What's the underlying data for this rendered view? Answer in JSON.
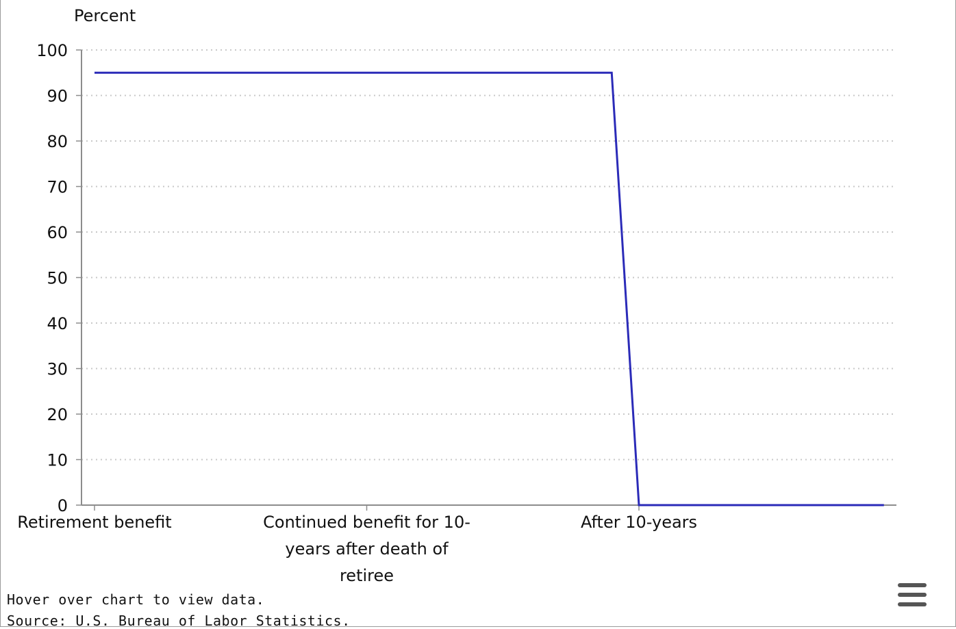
{
  "chart_data": {
    "type": "line",
    "title": "",
    "xlabel": "",
    "ylabel": "Percent",
    "categories": [
      "Retirement benefit",
      "Continued benefit for 10-years after death of retiree",
      "After 10-years",
      ""
    ],
    "category_label_lines": [
      [
        "Retirement benefit"
      ],
      [
        "Continued benefit for 10-",
        "years after death of",
        "retiree"
      ],
      [
        "After 10-years"
      ],
      []
    ],
    "series": [
      {
        "values": [
          95,
          95,
          95,
          0,
          0
        ]
      }
    ],
    "x": [
      0,
      1,
      1.9,
      2,
      2.9
    ],
    "ylim": [
      0,
      100
    ],
    "yticks": [
      0,
      10,
      20,
      30,
      40,
      50,
      60,
      70,
      80,
      90,
      100
    ],
    "grid": true,
    "legend": "none",
    "colors": {
      "line": "#2b2bb8",
      "grid": "#c8c8c8",
      "axis": "#8c8c8c"
    }
  },
  "footer": {
    "hover_note": "Hover over chart to view data.",
    "source_note": "Source: U.S. Bureau of Labor Statistics."
  },
  "menu": {
    "icon": "hamburger-menu-icon"
  }
}
